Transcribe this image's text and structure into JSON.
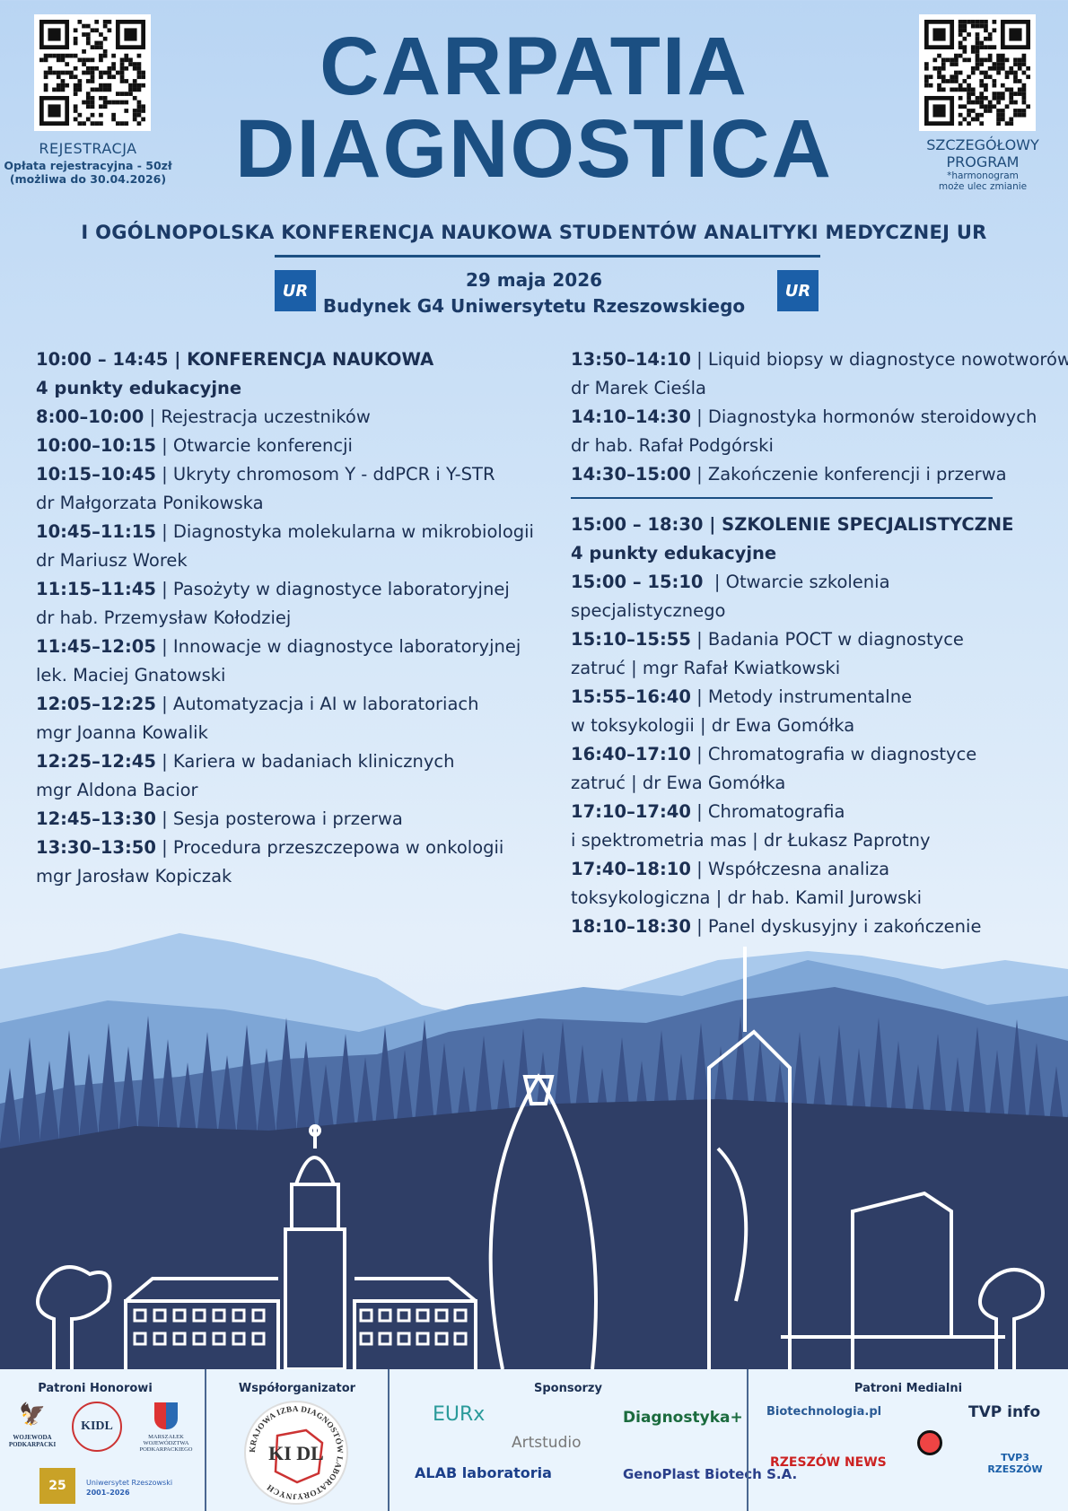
{
  "header": {
    "title_line1": "CARPATIA",
    "title_line2": "DIAGNOSTICA",
    "subtitle": "I OGÓLNOPOLSKA KONFERENCJA NAUKOWA STUDENTÓW ANALITYKI MEDYCZNEJ UR",
    "date": "29 maja 2026",
    "venue": "Budynek G4 Uniwersytetu Rzeszowskiego",
    "ur_logo": "UR",
    "registration": {
      "label": "REJESTRACJA",
      "fee": "Opłata rejestracyjna - 50zł",
      "deadline": "(możliwa do 30.04.2026)"
    },
    "program": {
      "label1": "SZCZEGÓŁOWY",
      "label2": "PROGRAM",
      "note1": "*harmonogram",
      "note2": "może ulec zmianie"
    }
  },
  "left_column": [
    {
      "b": "10:00 – 14:45 | KONFERENCJA NAUKOWA",
      "t": ""
    },
    {
      "b": "4 punkty edukacyjne",
      "t": ""
    },
    {
      "b": "8:00–10:00",
      "t": " | Rejestracja uczestników"
    },
    {
      "b": "10:00–10:15",
      "t": " | Otwarcie konferencji"
    },
    {
      "b": "10:15–10:45",
      "t": " | Ukryty chromosom Y - ddPCR i Y-STR"
    },
    {
      "b": "",
      "t": "dr Małgorzata Ponikowska"
    },
    {
      "b": "10:45–11:15",
      "t": " | Diagnostyka molekularna w mikrobiologii"
    },
    {
      "b": "",
      "t": "dr Mariusz Worek"
    },
    {
      "b": "11:15–11:45",
      "t": " | Pasożyty w diagnostyce laboratoryjnej"
    },
    {
      "b": "",
      "t": "dr hab. Przemysław Kołodziej"
    },
    {
      "b": "11:45–12:05",
      "t": " | Innowacje w diagnostyce laboratoryjnej"
    },
    {
      "b": "",
      "t": "lek. Maciej Gnatowski"
    },
    {
      "b": "12:05–12:25",
      "t": " | Automatyzacja i AI w laboratoriach"
    },
    {
      "b": "",
      "t": "mgr Joanna Kowalik"
    },
    {
      "b": "12:25–12:45",
      "t": " | Kariera w badaniach klinicznych"
    },
    {
      "b": "",
      "t": "mgr Aldona Bacior"
    },
    {
      "b": "12:45–13:30",
      "t": " | Sesja posterowa i przerwa"
    },
    {
      "b": "13:30–13:50",
      "t": " | Procedura przeszczepowa w onkologii"
    },
    {
      "b": "",
      "t": "mgr Jarosław Kopiczak"
    }
  ],
  "right_column_top": [
    {
      "b": "13:50–14:10",
      "t": " | Liquid biopsy w diagnostyce nowotworów"
    },
    {
      "b": "",
      "t": "dr Marek Cieśla"
    },
    {
      "b": "14:10–14:30",
      "t": " | Diagnostyka hormonów steroidowych"
    },
    {
      "b": "",
      "t": "dr hab. Rafał Podgórski"
    },
    {
      "b": "14:30–15:00",
      "t": " | Zakończenie konferencji i przerwa"
    }
  ],
  "right_column_bottom": [
    {
      "b": "15:00 – 18:30 | SZKOLENIE SPECJALISTYCZNE",
      "t": ""
    },
    {
      "b": "4 punkty edukacyjne",
      "t": ""
    },
    {
      "b": "15:00 – 15:10",
      "t": "  | Otwarcie szkolenia"
    },
    {
      "b": "",
      "t": "specjalistycznego"
    },
    {
      "b": "15:10–15:55",
      "t": " | Badania POCT w diagnostyce"
    },
    {
      "b": "",
      "t": "zatruć | mgr Rafał Kwiatkowski"
    },
    {
      "b": "15:55–16:40",
      "t": " | Metody instrumentalne"
    },
    {
      "b": "",
      "t": "w toksykologii | dr Ewa Gomółka"
    },
    {
      "b": "16:40–17:10",
      "t": " | Chromatografia w diagnostyce"
    },
    {
      "b": "",
      "t": "zatruć | dr Ewa Gomółka"
    },
    {
      "b": "17:10–17:40",
      "t": " | Chromatografia"
    },
    {
      "b": "",
      "t": "i spektrometria mas | dr Łukasz Paprotny"
    },
    {
      "b": "17:40–18:10",
      "t": " | Współczesna analiza"
    },
    {
      "b": "",
      "t": "toksykologiczna | dr hab. Kamil Jurowski"
    },
    {
      "b": "18:10–18:30",
      "t": " | Panel dyskusyjny i zakończenie"
    }
  ],
  "footer": {
    "honorary": {
      "title": "Patroni Honorowi",
      "wojewoda": "WOJEWODA PODKARPACKI",
      "marszalek": "MARSZAŁEK WOJEWÓDZTWA PODKARPACKIEGO",
      "ur1": "Uniwersytet Rzeszowski",
      "ur2": "2001–2026",
      "kidl": "KIDL"
    },
    "coorganizer": {
      "title": "Współorganizator",
      "kidl": "KI DL",
      "ring": "KRAJOWA IZBA DIAGNOSTÓW LABORATORYJNYCH"
    },
    "sponsors": {
      "title": "Sponsorzy",
      "items": [
        "EURx",
        "Diagnostyka+",
        "Artstudio",
        "ALAB laboratoria",
        "GenoPlast Biotech S.A."
      ]
    },
    "media": {
      "title": "Patroni Medialni",
      "items": [
        "Biotechnologia.pl",
        "TVP info",
        "RZESZÓW NEWS",
        "TVP3 RZESZÓW"
      ]
    }
  },
  "colors": {
    "navy": "#2f3e66",
    "title_blue": "#1b4f82",
    "footer_bg": "#eaf4fd"
  }
}
